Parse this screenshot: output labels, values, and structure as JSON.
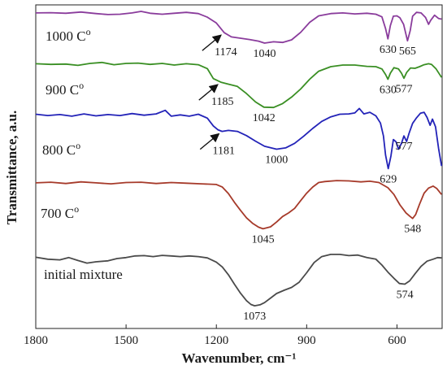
{
  "chart_data": {
    "type": "line",
    "title": "",
    "xlabel": "Wavenumber, cm⁻¹",
    "ylabel": "Transmittance, a.u.",
    "x_reversed": true,
    "xlim": [
      1800,
      450
    ],
    "ylim": [
      0,
      100
    ],
    "x_ticks": [
      1800,
      1500,
      1200,
      900,
      600
    ],
    "y_tick_labels": "none",
    "grid": false,
    "legend": "none (labels printed beside each curve)",
    "series": [
      {
        "name": "1000 Cº",
        "color": "#8a3c9c",
        "points": [
          [
            1800,
            97.5
          ],
          [
            1750,
            97.6
          ],
          [
            1700,
            97.4
          ],
          [
            1650,
            97.8
          ],
          [
            1600,
            97.3
          ],
          [
            1560,
            97.0
          ],
          [
            1520,
            97.1
          ],
          [
            1480,
            97.5
          ],
          [
            1450,
            98.0
          ],
          [
            1420,
            97.4
          ],
          [
            1380,
            97.1
          ],
          [
            1340,
            97.4
          ],
          [
            1300,
            97.7
          ],
          [
            1260,
            97.3
          ],
          [
            1230,
            96.2
          ],
          [
            1200,
            94.4
          ],
          [
            1174,
            91.4
          ],
          [
            1150,
            90.1
          ],
          [
            1120,
            89.7
          ],
          [
            1090,
            89.3
          ],
          [
            1060,
            88.8
          ],
          [
            1040,
            88.2
          ],
          [
            1010,
            88.6
          ],
          [
            980,
            88.4
          ],
          [
            950,
            89.2
          ],
          [
            920,
            91.5
          ],
          [
            890,
            94.6
          ],
          [
            860,
            96.6
          ],
          [
            820,
            97.3
          ],
          [
            780,
            97.5
          ],
          [
            740,
            97.2
          ],
          [
            700,
            97.4
          ],
          [
            670,
            97.1
          ],
          [
            650,
            96.3
          ],
          [
            638,
            92.7
          ],
          [
            630,
            89.5
          ],
          [
            622,
            93.6
          ],
          [
            612,
            96.5
          ],
          [
            600,
            96.6
          ],
          [
            590,
            96.0
          ],
          [
            578,
            94.0
          ],
          [
            565,
            88.9
          ],
          [
            556,
            92.0
          ],
          [
            548,
            96.5
          ],
          [
            535,
            97.7
          ],
          [
            520,
            97.5
          ],
          [
            505,
            96.1
          ],
          [
            495,
            94.0
          ],
          [
            488,
            95.2
          ],
          [
            475,
            96.8
          ],
          [
            462,
            95.8
          ],
          [
            452,
            95.6
          ]
        ]
      },
      {
        "name": "900 Cº",
        "color": "#3a8f24",
        "points": [
          [
            1800,
            81.8
          ],
          [
            1750,
            81.6
          ],
          [
            1700,
            81.7
          ],
          [
            1660,
            81.3
          ],
          [
            1620,
            81.9
          ],
          [
            1580,
            82.2
          ],
          [
            1540,
            81.5
          ],
          [
            1500,
            81.9
          ],
          [
            1460,
            82.0
          ],
          [
            1420,
            81.6
          ],
          [
            1380,
            81.9
          ],
          [
            1340,
            81.4
          ],
          [
            1300,
            81.8
          ],
          [
            1260,
            81.5
          ],
          [
            1230,
            80.3
          ],
          [
            1210,
            77.2
          ],
          [
            1185,
            76.1
          ],
          [
            1160,
            75.5
          ],
          [
            1130,
            74.8
          ],
          [
            1100,
            72.6
          ],
          [
            1070,
            70.0
          ],
          [
            1042,
            68.4
          ],
          [
            1010,
            68.3
          ],
          [
            980,
            69.5
          ],
          [
            950,
            71.5
          ],
          [
            920,
            74.0
          ],
          [
            890,
            77.0
          ],
          [
            860,
            79.5
          ],
          [
            820,
            80.9
          ],
          [
            780,
            81.4
          ],
          [
            740,
            81.4
          ],
          [
            700,
            81.0
          ],
          [
            670,
            80.9
          ],
          [
            650,
            80.2
          ],
          [
            638,
            78.5
          ],
          [
            630,
            77.0
          ],
          [
            622,
            78.9
          ],
          [
            610,
            80.6
          ],
          [
            595,
            80.2
          ],
          [
            585,
            78.9
          ],
          [
            577,
            77.3
          ],
          [
            568,
            79.1
          ],
          [
            555,
            80.5
          ],
          [
            540,
            80.4
          ],
          [
            525,
            80.9
          ],
          [
            510,
            81.5
          ],
          [
            495,
            81.8
          ],
          [
            485,
            81.6
          ],
          [
            470,
            80.2
          ],
          [
            452,
            77.6
          ]
        ]
      },
      {
        "name": "800 Cº",
        "color": "#2323b8",
        "points": [
          [
            1800,
            66.2
          ],
          [
            1760,
            65.8
          ],
          [
            1720,
            66.1
          ],
          [
            1680,
            65.6
          ],
          [
            1640,
            66.3
          ],
          [
            1600,
            65.7
          ],
          [
            1560,
            66.1
          ],
          [
            1520,
            65.8
          ],
          [
            1480,
            66.4
          ],
          [
            1440,
            65.9
          ],
          [
            1400,
            66.3
          ],
          [
            1370,
            67.4
          ],
          [
            1350,
            65.6
          ],
          [
            1320,
            66.0
          ],
          [
            1290,
            65.6
          ],
          [
            1260,
            66.2
          ],
          [
            1230,
            65.0
          ],
          [
            1210,
            62.6
          ],
          [
            1195,
            61.4
          ],
          [
            1181,
            60.9
          ],
          [
            1160,
            61.2
          ],
          [
            1130,
            60.9
          ],
          [
            1100,
            59.6
          ],
          [
            1070,
            57.9
          ],
          [
            1040,
            56.3
          ],
          [
            1000,
            55.4
          ],
          [
            970,
            55.8
          ],
          [
            940,
            57.2
          ],
          [
            910,
            59.4
          ],
          [
            880,
            61.8
          ],
          [
            850,
            64.0
          ],
          [
            820,
            65.4
          ],
          [
            790,
            66.2
          ],
          [
            760,
            66.3
          ],
          [
            740,
            66.6
          ],
          [
            725,
            68.0
          ],
          [
            710,
            66.3
          ],
          [
            690,
            66.8
          ],
          [
            670,
            65.7
          ],
          [
            655,
            63.5
          ],
          [
            645,
            59.5
          ],
          [
            638,
            53.6
          ],
          [
            629,
            49.4
          ],
          [
            620,
            53.3
          ],
          [
            612,
            58.4
          ],
          [
            603,
            57.7
          ],
          [
            595,
            55.4
          ],
          [
            585,
            57.2
          ],
          [
            577,
            59.5
          ],
          [
            568,
            57.8
          ],
          [
            560,
            60.3
          ],
          [
            548,
            63.4
          ],
          [
            535,
            65.1
          ],
          [
            522,
            66.5
          ],
          [
            510,
            66.8
          ],
          [
            500,
            65.2
          ],
          [
            490,
            62.8
          ],
          [
            482,
            64.7
          ],
          [
            472,
            62.3
          ],
          [
            462,
            55.7
          ],
          [
            452,
            50.2
          ]
        ]
      },
      {
        "name": "700 Cº",
        "color": "#a63a2a",
        "points": [
          [
            1800,
            45.0
          ],
          [
            1750,
            45.2
          ],
          [
            1700,
            44.8
          ],
          [
            1650,
            45.3
          ],
          [
            1600,
            45.0
          ],
          [
            1550,
            44.7
          ],
          [
            1500,
            45.1
          ],
          [
            1450,
            45.2
          ],
          [
            1400,
            44.8
          ],
          [
            1350,
            45.1
          ],
          [
            1300,
            44.9
          ],
          [
            1250,
            44.7
          ],
          [
            1200,
            44.5
          ],
          [
            1180,
            43.7
          ],
          [
            1160,
            41.7
          ],
          [
            1140,
            39.0
          ],
          [
            1120,
            36.5
          ],
          [
            1100,
            34.2
          ],
          [
            1080,
            32.5
          ],
          [
            1060,
            31.3
          ],
          [
            1045,
            30.8
          ],
          [
            1020,
            31.4
          ],
          [
            1000,
            32.9
          ],
          [
            980,
            34.6
          ],
          [
            960,
            35.7
          ],
          [
            940,
            37.1
          ],
          [
            920,
            39.5
          ],
          [
            900,
            41.8
          ],
          [
            880,
            43.7
          ],
          [
            860,
            45.1
          ],
          [
            840,
            45.4
          ],
          [
            800,
            45.7
          ],
          [
            760,
            45.6
          ],
          [
            720,
            45.3
          ],
          [
            690,
            45.5
          ],
          [
            660,
            45.1
          ],
          [
            630,
            43.5
          ],
          [
            610,
            41.4
          ],
          [
            590,
            38.2
          ],
          [
            570,
            35.7
          ],
          [
            556,
            34.6
          ],
          [
            548,
            34.0
          ],
          [
            538,
            35.2
          ],
          [
            525,
            38.4
          ],
          [
            510,
            41.8
          ],
          [
            495,
            43.4
          ],
          [
            480,
            44.0
          ],
          [
            468,
            43.3
          ],
          [
            452,
            41.4
          ]
        ]
      },
      {
        "name": "initial mixture",
        "color": "#4a4a4a",
        "points": [
          [
            1800,
            22.0
          ],
          [
            1760,
            21.4
          ],
          [
            1720,
            21.2
          ],
          [
            1690,
            21.9
          ],
          [
            1660,
            21.0
          ],
          [
            1630,
            20.2
          ],
          [
            1600,
            20.6
          ],
          [
            1560,
            20.9
          ],
          [
            1530,
            21.6
          ],
          [
            1500,
            21.9
          ],
          [
            1470,
            22.4
          ],
          [
            1440,
            22.5
          ],
          [
            1410,
            22.2
          ],
          [
            1380,
            22.6
          ],
          [
            1350,
            22.4
          ],
          [
            1320,
            22.2
          ],
          [
            1290,
            22.4
          ],
          [
            1260,
            22.2
          ],
          [
            1230,
            21.8
          ],
          [
            1200,
            20.5
          ],
          [
            1180,
            19.0
          ],
          [
            1160,
            16.6
          ],
          [
            1140,
            13.7
          ],
          [
            1120,
            10.9
          ],
          [
            1100,
            8.6
          ],
          [
            1085,
            7.4
          ],
          [
            1073,
            7.0
          ],
          [
            1055,
            7.3
          ],
          [
            1040,
            8.0
          ],
          [
            1020,
            9.4
          ],
          [
            1000,
            10.8
          ],
          [
            975,
            11.8
          ],
          [
            950,
            12.7
          ],
          [
            925,
            14.3
          ],
          [
            900,
            17.2
          ],
          [
            875,
            20.4
          ],
          [
            850,
            22.2
          ],
          [
            820,
            22.9
          ],
          [
            790,
            22.9
          ],
          [
            760,
            22.5
          ],
          [
            730,
            22.7
          ],
          [
            700,
            21.9
          ],
          [
            670,
            21.4
          ],
          [
            650,
            19.6
          ],
          [
            630,
            17.4
          ],
          [
            610,
            15.5
          ],
          [
            592,
            13.9
          ],
          [
            574,
            13.7
          ],
          [
            558,
            14.7
          ],
          [
            540,
            16.9
          ],
          [
            520,
            19.2
          ],
          [
            500,
            20.8
          ],
          [
            480,
            21.4
          ],
          [
            465,
            21.9
          ],
          [
            452,
            21.8
          ]
        ]
      }
    ],
    "series_labels": [
      {
        "text": "1000 C",
        "sup": "o",
        "series": 0
      },
      {
        "text": "900 C",
        "sup": "o",
        "series": 1
      },
      {
        "text": "800 C",
        "sup": "o",
        "series": 2
      },
      {
        "text": "700 C",
        "sup": "o",
        "series": 3
      },
      {
        "text": "initial mixture",
        "sup": "",
        "series": 4
      }
    ],
    "annotations": [
      {
        "text": "1174",
        "x": 1174,
        "series": 0,
        "arrow": true
      },
      {
        "text": "1040",
        "x": 1040,
        "series": 0,
        "arrow": false
      },
      {
        "text": "630",
        "x": 630,
        "series": 0,
        "arrow": false
      },
      {
        "text": "565",
        "x": 565,
        "series": 0,
        "arrow": false
      },
      {
        "text": "1185",
        "x": 1185,
        "series": 1,
        "arrow": true
      },
      {
        "text": "1042",
        "x": 1042,
        "series": 1,
        "arrow": false
      },
      {
        "text": "630",
        "x": 630,
        "series": 1,
        "arrow": false
      },
      {
        "text": "577",
        "x": 577,
        "series": 1,
        "arrow": false
      },
      {
        "text": "1181",
        "x": 1181,
        "series": 2,
        "arrow": true
      },
      {
        "text": "1000",
        "x": 1000,
        "series": 2,
        "arrow": false
      },
      {
        "text": "629",
        "x": 629,
        "series": 2,
        "arrow": false
      },
      {
        "text": "577",
        "x": 577,
        "series": 2,
        "arrow": false
      },
      {
        "text": "1045",
        "x": 1045,
        "series": 3,
        "arrow": false
      },
      {
        "text": "548",
        "x": 548,
        "series": 3,
        "arrow": false
      },
      {
        "text": "1073",
        "x": 1073,
        "series": 4,
        "arrow": false
      },
      {
        "text": "574",
        "x": 574,
        "series": 4,
        "arrow": false
      }
    ]
  }
}
